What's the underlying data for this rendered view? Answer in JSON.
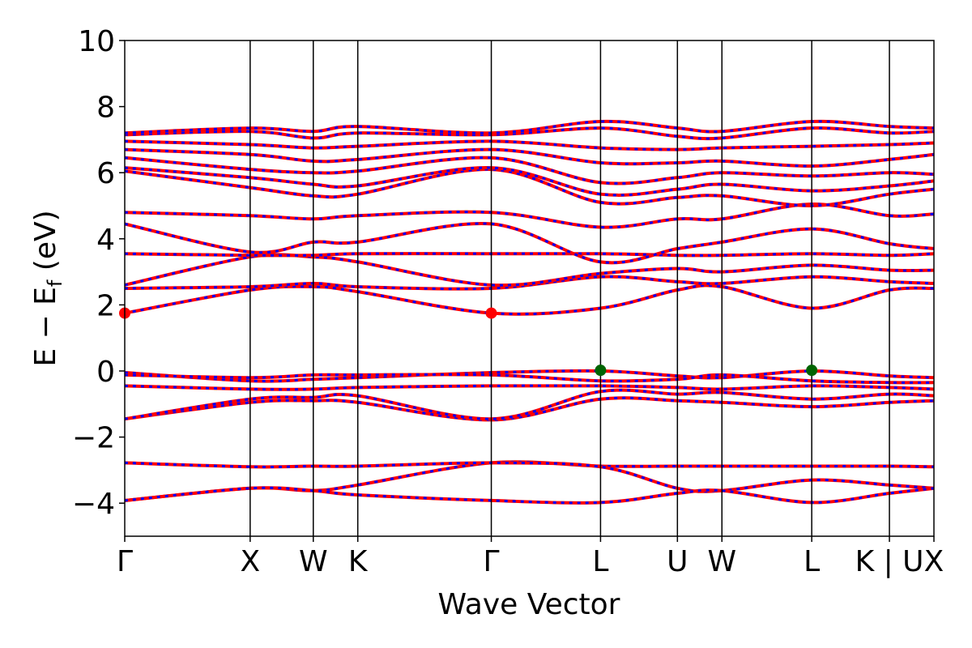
{
  "chart_data": {
    "type": "line",
    "xlabel": "Wave Vector",
    "ylabel": {
      "main": "E − E",
      "sub": "f",
      "tail": " (eV)"
    },
    "ylim": [
      -5,
      10
    ],
    "yticks": [
      -4,
      -2,
      0,
      2,
      4,
      6,
      8,
      10
    ],
    "ytick_labels": [
      "−4",
      "−2",
      "0",
      "2",
      "4",
      "6",
      "8",
      "10"
    ],
    "xlim": [
      0,
      1
    ],
    "kpoints": [
      {
        "label": "Γ",
        "pos": 0.0
      },
      {
        "label": "X",
        "pos": 0.155
      },
      {
        "label": "W",
        "pos": 0.233
      },
      {
        "label": "K",
        "pos": 0.288
      },
      {
        "label": "Γ",
        "pos": 0.453
      },
      {
        "label": "L",
        "pos": 0.588
      },
      {
        "label": "U",
        "pos": 0.683
      },
      {
        "label": "W",
        "pos": 0.738
      },
      {
        "label": "L",
        "pos": 0.849
      },
      {
        "label": "K | U",
        "pos": 0.945
      },
      {
        "label": "X",
        "pos": 1.0
      }
    ],
    "line_colors": {
      "primary": "#ff0000",
      "dash": "#0000ff"
    },
    "bands": [
      [
        [
          0,
          -3.92
        ],
        [
          0.155,
          -3.55
        ],
        [
          0.233,
          -3.62
        ],
        [
          0.288,
          -3.45
        ],
        [
          0.453,
          -2.78
        ],
        [
          0.588,
          -2.88
        ],
        [
          0.683,
          -2.88
        ],
        [
          0.738,
          -2.88
        ],
        [
          0.849,
          -2.88
        ],
        [
          0.945,
          -2.88
        ],
        [
          1.0,
          -2.9
        ]
      ],
      [
        [
          0,
          -2.78
        ],
        [
          0.155,
          -2.9
        ],
        [
          0.233,
          -2.88
        ],
        [
          0.288,
          -2.88
        ],
        [
          0.453,
          -2.78
        ],
        [
          0.588,
          -2.9
        ],
        [
          0.683,
          -3.55
        ],
        [
          0.738,
          -3.62
        ],
        [
          0.849,
          -3.3
        ],
        [
          0.945,
          -3.45
        ],
        [
          1.0,
          -3.55
        ]
      ],
      [
        [
          0,
          -3.92
        ],
        [
          0.155,
          -3.55
        ],
        [
          0.233,
          -3.62
        ],
        [
          0.288,
          -3.75
        ],
        [
          0.453,
          -3.92
        ],
        [
          0.588,
          -3.98
        ],
        [
          0.683,
          -3.7
        ],
        [
          0.738,
          -3.62
        ],
        [
          0.849,
          -3.98
        ],
        [
          0.945,
          -3.7
        ],
        [
          1.0,
          -3.55
        ]
      ],
      [
        [
          0,
          -1.45
        ],
        [
          0.155,
          -0.95
        ],
        [
          0.233,
          -0.9
        ],
        [
          0.288,
          -0.95
        ],
        [
          0.453,
          -1.48
        ],
        [
          0.588,
          -0.85
        ],
        [
          0.683,
          -0.9
        ],
        [
          0.738,
          -0.95
        ],
        [
          0.849,
          -1.08
        ],
        [
          0.945,
          -0.95
        ],
        [
          1.0,
          -0.9
        ]
      ],
      [
        [
          0,
          -1.45
        ],
        [
          0.155,
          -0.85
        ],
        [
          0.233,
          -0.8
        ],
        [
          0.288,
          -0.75
        ],
        [
          0.453,
          -1.45
        ],
        [
          0.588,
          -0.62
        ],
        [
          0.683,
          -0.7
        ],
        [
          0.738,
          -0.65
        ],
        [
          0.849,
          -0.85
        ],
        [
          0.945,
          -0.7
        ],
        [
          1.0,
          -0.75
        ]
      ],
      [
        [
          0,
          -0.45
        ],
        [
          0.155,
          -0.55
        ],
        [
          0.233,
          -0.55
        ],
        [
          0.288,
          -0.5
        ],
        [
          0.453,
          -0.45
        ],
        [
          0.588,
          -0.45
        ],
        [
          0.683,
          -0.5
        ],
        [
          0.738,
          -0.55
        ],
        [
          0.849,
          -0.45
        ],
        [
          0.945,
          -0.5
        ],
        [
          1.0,
          -0.55
        ]
      ],
      [
        [
          0,
          -0.05
        ],
        [
          0.155,
          -0.3
        ],
        [
          0.233,
          -0.25
        ],
        [
          0.288,
          -0.2
        ],
        [
          0.453,
          -0.05
        ],
        [
          0.588,
          0.0
        ],
        [
          0.683,
          -0.15
        ],
        [
          0.738,
          -0.2
        ],
        [
          0.849,
          0.0
        ],
        [
          0.945,
          -0.15
        ],
        [
          1.0,
          -0.2
        ]
      ],
      [
        [
          0,
          -0.12
        ],
        [
          0.155,
          -0.2
        ],
        [
          0.233,
          -0.12
        ],
        [
          0.288,
          -0.12
        ],
        [
          0.453,
          -0.12
        ],
        [
          0.588,
          -0.3
        ],
        [
          0.683,
          -0.25
        ],
        [
          0.738,
          -0.12
        ],
        [
          0.849,
          -0.3
        ],
        [
          0.945,
          -0.35
        ],
        [
          1.0,
          -0.35
        ]
      ],
      [
        [
          0,
          1.75
        ],
        [
          0.155,
          2.45
        ],
        [
          0.233,
          2.55
        ],
        [
          0.288,
          2.4
        ],
        [
          0.453,
          1.75
        ],
        [
          0.588,
          1.9
        ],
        [
          0.683,
          2.45
        ],
        [
          0.738,
          2.55
        ],
        [
          0.849,
          1.9
        ],
        [
          0.945,
          2.45
        ],
        [
          1.0,
          2.5
        ]
      ],
      [
        [
          0,
          2.5
        ],
        [
          0.155,
          2.55
        ],
        [
          0.233,
          2.65
        ],
        [
          0.288,
          2.55
        ],
        [
          0.453,
          2.5
        ],
        [
          0.588,
          2.85
        ],
        [
          0.683,
          2.7
        ],
        [
          0.738,
          2.65
        ],
        [
          0.849,
          2.85
        ],
        [
          0.945,
          2.7
        ],
        [
          1.0,
          2.65
        ]
      ],
      [
        [
          0,
          2.6
        ],
        [
          0.155,
          3.45
        ],
        [
          0.233,
          3.45
        ],
        [
          0.288,
          3.3
        ],
        [
          0.453,
          2.6
        ],
        [
          0.588,
          2.95
        ],
        [
          0.683,
          3.1
        ],
        [
          0.738,
          3.0
        ],
        [
          0.849,
          3.2
        ],
        [
          0.945,
          3.05
        ],
        [
          1.0,
          3.05
        ]
      ],
      [
        [
          0,
          3.55
        ],
        [
          0.155,
          3.5
        ],
        [
          0.233,
          3.5
        ],
        [
          0.288,
          3.55
        ],
        [
          0.453,
          3.55
        ],
        [
          0.588,
          3.55
        ],
        [
          0.683,
          3.5
        ],
        [
          0.738,
          3.5
        ],
        [
          0.849,
          3.55
        ],
        [
          0.945,
          3.5
        ],
        [
          1.0,
          3.55
        ]
      ],
      [
        [
          0,
          4.45
        ],
        [
          0.155,
          3.6
        ],
        [
          0.233,
          3.9
        ],
        [
          0.288,
          3.9
        ],
        [
          0.453,
          4.45
        ],
        [
          0.588,
          3.3
        ],
        [
          0.683,
          3.7
        ],
        [
          0.738,
          3.9
        ],
        [
          0.849,
          4.3
        ],
        [
          0.945,
          3.85
        ],
        [
          1.0,
          3.7
        ]
      ],
      [
        [
          0,
          4.8
        ],
        [
          0.155,
          4.7
        ],
        [
          0.233,
          4.6
        ],
        [
          0.288,
          4.7
        ],
        [
          0.453,
          4.8
        ],
        [
          0.588,
          4.35
        ],
        [
          0.683,
          4.6
        ],
        [
          0.738,
          4.6
        ],
        [
          0.849,
          5.05
        ],
        [
          0.945,
          4.7
        ],
        [
          1.0,
          4.75
        ]
      ],
      [
        [
          0,
          6.05
        ],
        [
          0.155,
          5.55
        ],
        [
          0.233,
          5.3
        ],
        [
          0.288,
          5.35
        ],
        [
          0.453,
          6.1
        ],
        [
          0.588,
          5.1
        ],
        [
          0.683,
          5.25
        ],
        [
          0.738,
          5.3
        ],
        [
          0.849,
          5.0
        ],
        [
          0.945,
          5.35
        ],
        [
          1.0,
          5.5
        ]
      ],
      [
        [
          0,
          6.15
        ],
        [
          0.155,
          5.85
        ],
        [
          0.233,
          5.65
        ],
        [
          0.288,
          5.6
        ],
        [
          0.453,
          6.15
        ],
        [
          0.588,
          5.35
        ],
        [
          0.683,
          5.5
        ],
        [
          0.738,
          5.65
        ],
        [
          0.849,
          5.45
        ],
        [
          0.945,
          5.6
        ],
        [
          1.0,
          5.75
        ]
      ],
      [
        [
          0,
          6.45
        ],
        [
          0.155,
          6.1
        ],
        [
          0.233,
          6.0
        ],
        [
          0.288,
          6.05
        ],
        [
          0.453,
          6.45
        ],
        [
          0.588,
          5.7
        ],
        [
          0.683,
          5.85
        ],
        [
          0.738,
          6.0
        ],
        [
          0.849,
          5.9
        ],
        [
          0.945,
          6.0
        ],
        [
          1.0,
          5.95
        ]
      ],
      [
        [
          0,
          6.7
        ],
        [
          0.155,
          6.55
        ],
        [
          0.233,
          6.35
        ],
        [
          0.288,
          6.4
        ],
        [
          0.453,
          6.7
        ],
        [
          0.588,
          6.3
        ],
        [
          0.683,
          6.3
        ],
        [
          0.738,
          6.35
        ],
        [
          0.849,
          6.2
        ],
        [
          0.945,
          6.4
        ],
        [
          1.0,
          6.55
        ]
      ],
      [
        [
          0,
          6.95
        ],
        [
          0.155,
          6.85
        ],
        [
          0.233,
          6.75
        ],
        [
          0.288,
          6.8
        ],
        [
          0.453,
          6.95
        ],
        [
          0.588,
          6.75
        ],
        [
          0.683,
          6.7
        ],
        [
          0.738,
          6.75
        ],
        [
          0.849,
          6.8
        ],
        [
          0.945,
          6.85
        ],
        [
          1.0,
          6.9
        ]
      ],
      [
        [
          0,
          7.15
        ],
        [
          0.155,
          7.25
        ],
        [
          0.233,
          7.05
        ],
        [
          0.288,
          7.2
        ],
        [
          0.453,
          7.15
        ],
        [
          0.588,
          7.35
        ],
        [
          0.683,
          7.1
        ],
        [
          0.738,
          7.05
        ],
        [
          0.849,
          7.35
        ],
        [
          0.945,
          7.2
        ],
        [
          1.0,
          7.25
        ]
      ],
      [
        [
          0,
          7.2
        ],
        [
          0.155,
          7.35
        ],
        [
          0.233,
          7.25
        ],
        [
          0.288,
          7.4
        ],
        [
          0.453,
          7.2
        ],
        [
          0.588,
          7.55
        ],
        [
          0.683,
          7.35
        ],
        [
          0.738,
          7.25
        ],
        [
          0.849,
          7.55
        ],
        [
          0.945,
          7.4
        ],
        [
          1.0,
          7.35
        ]
      ]
    ],
    "cbm_points": [
      [
        0,
        1.75
      ],
      [
        0.453,
        1.75
      ]
    ],
    "vbm_points": [
      [
        0.588,
        0.02
      ],
      [
        0.849,
        0.02
      ]
    ],
    "marker_colors": {
      "cbm": "#ff0000",
      "vbm": "#006400"
    }
  }
}
